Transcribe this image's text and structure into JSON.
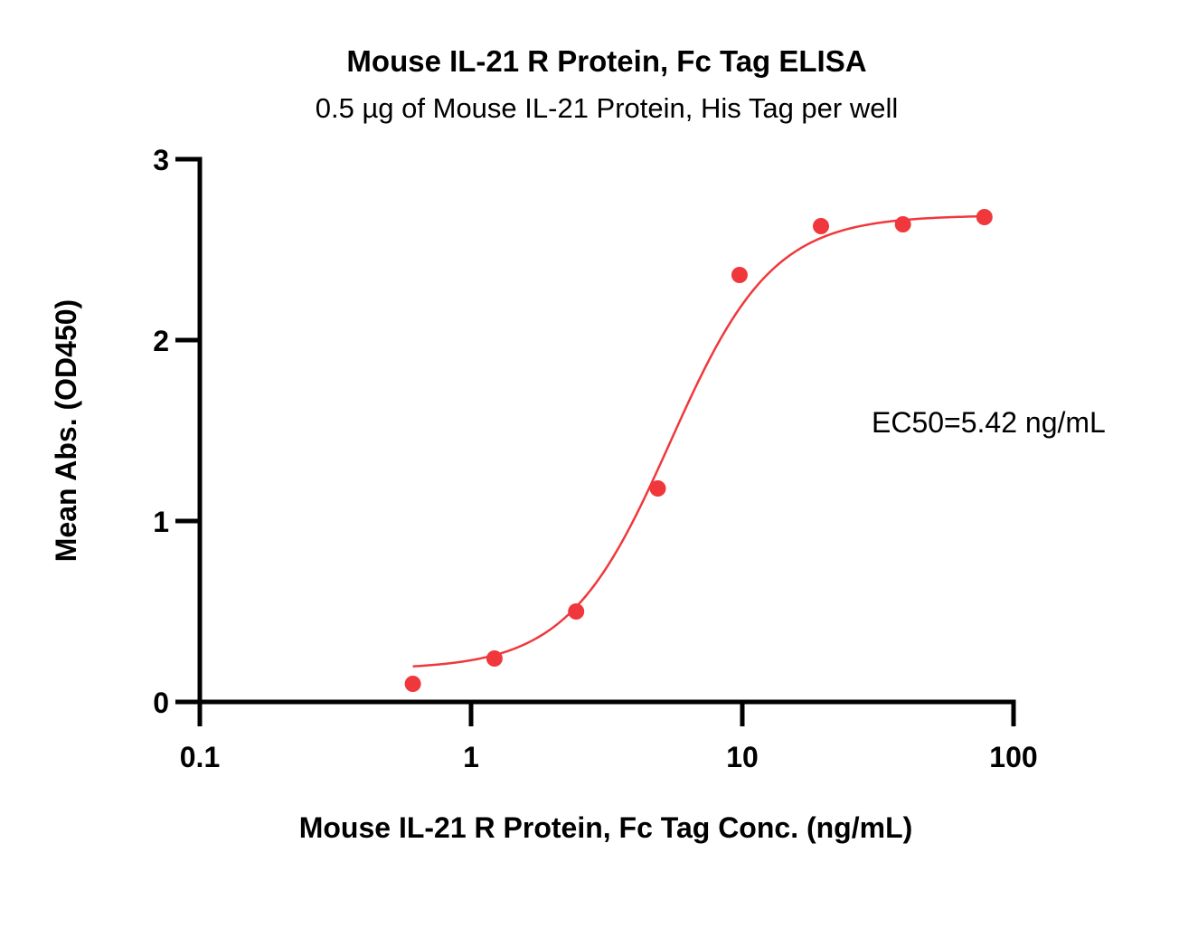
{
  "chart_data": {
    "type": "scatter",
    "title": "Mouse IL-21 R Protein, Fc Tag ELISA",
    "subtitle": "0.5 µg of Mouse IL-21 Protein, His Tag per well",
    "xlabel": "Mouse IL-21 R Protein, Fc Tag Conc. (ng/mL)",
    "ylabel": "Mean Abs. (OD450)",
    "x_scale": "log",
    "xlim": [
      0.1,
      100
    ],
    "ylim": [
      0,
      3
    ],
    "x_ticks": [
      0.1,
      1,
      10,
      100
    ],
    "x_tick_labels": [
      "0.1",
      "1",
      "10",
      "100"
    ],
    "y_ticks": [
      0,
      1,
      2,
      3
    ],
    "y_tick_labels": [
      "0",
      "1",
      "2",
      "3"
    ],
    "grid": false,
    "series": [
      {
        "color": "#f0383c",
        "x": [
          0.61,
          1.22,
          2.44,
          4.88,
          9.77,
          19.5,
          39.1,
          78.1
        ],
        "y": [
          0.1,
          0.24,
          0.5,
          1.18,
          2.36,
          2.63,
          2.64,
          2.68
        ]
      }
    ],
    "fit": {
      "type": "4PL",
      "bottom": 0.18,
      "top": 2.69,
      "ec50": 5.42,
      "hill": 2.3,
      "x_range": [
        0.61,
        78.1
      ],
      "color": "#f0383c"
    },
    "annotation": "EC50=5.42 ng/mL"
  }
}
